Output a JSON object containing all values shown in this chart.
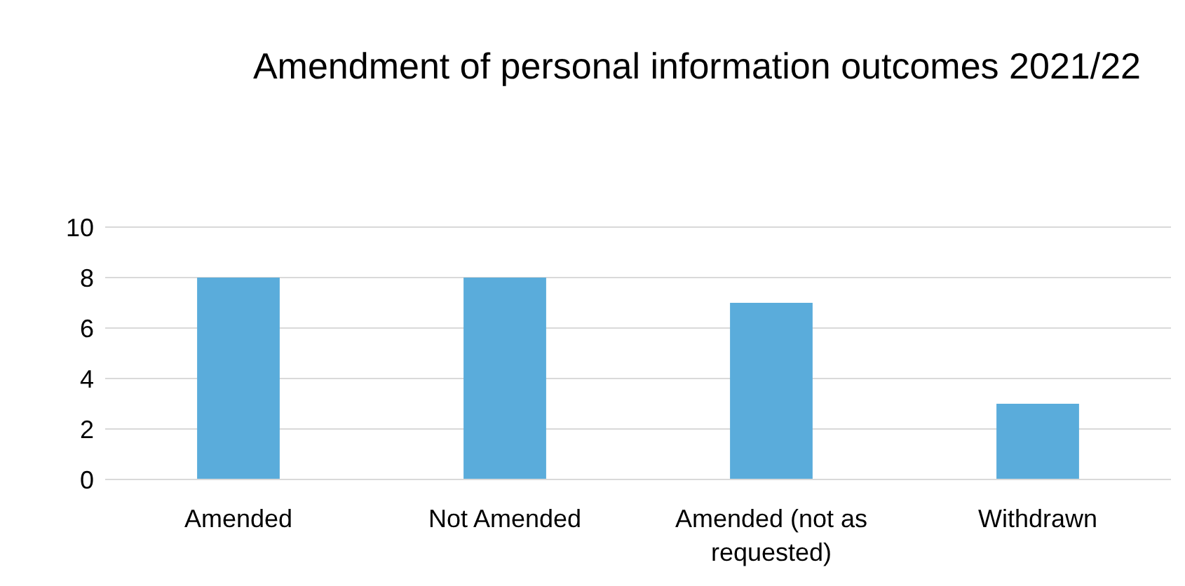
{
  "chart_data": {
    "type": "bar",
    "title": "Amendment of personal information outcomes 2021/22",
    "categories": [
      "Amended",
      "Not Amended",
      "Amended (not as requested)",
      "Withdrawn"
    ],
    "values": [
      8,
      8,
      7,
      3
    ],
    "color": "#5aacdb",
    "ylim": [
      0,
      10
    ],
    "yticks": [
      0,
      2,
      4,
      6,
      8,
      10
    ],
    "grid": "y"
  }
}
